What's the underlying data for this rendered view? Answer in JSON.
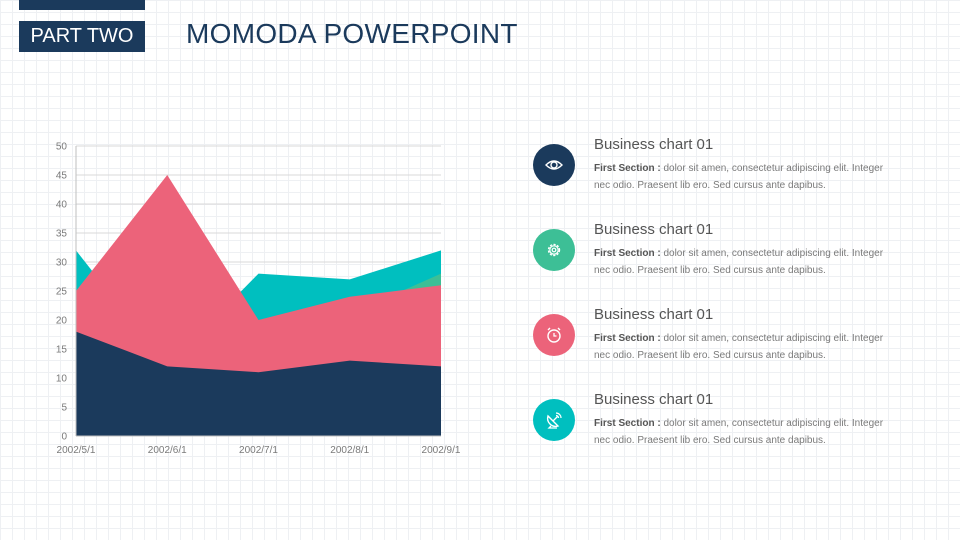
{
  "header": {
    "part_label": "PART TWO",
    "title": "MOMODA POWERPOINT"
  },
  "chart_data": {
    "type": "area",
    "categories": [
      "2002/5/1",
      "2002/6/1",
      "2002/7/1",
      "2002/8/1",
      "2002/9/1"
    ],
    "ylim": [
      0,
      50
    ],
    "yticks": [
      0,
      5,
      10,
      15,
      20,
      25,
      30,
      35,
      40,
      45,
      50
    ],
    "grid": true,
    "legend": "none",
    "series": [
      {
        "values": [
          32,
          12,
          28,
          27,
          32
        ],
        "color": "#00bfbf"
      },
      {
        "values": [
          22,
          12,
          12,
          21,
          28
        ],
        "color": "#3dbf96"
      },
      {
        "values": [
          25,
          45,
          20,
          24,
          26
        ],
        "color": "#ec637a"
      },
      {
        "values": [
          18,
          12,
          11,
          13,
          12
        ],
        "color": "#1b3a5c"
      }
    ]
  },
  "items": [
    {
      "icon": "eye-icon",
      "color": "#1b3a5c",
      "title": "Business chart 01",
      "bold": "First Section :",
      "text": " dolor sit amen, consectetur adipiscing elit. Integer nec odio. Praesent lib ero. Sed cursus ante dapibus."
    },
    {
      "icon": "gear-icon",
      "color": "#3dbf96",
      "title": "Business chart 01",
      "bold": "First Section :",
      "text": " dolor sit amen, consectetur adipiscing elit. Integer nec odio. Praesent lib ero. Sed cursus ante dapibus."
    },
    {
      "icon": "alarm-clock-icon",
      "color": "#ec637a",
      "title": "Business chart 01",
      "bold": "First Section :",
      "text": " dolor sit amen, consectetur adipiscing elit. Integer nec odio. Praesent lib ero. Sed cursus ante dapibus."
    },
    {
      "icon": "satellite-dish-icon",
      "color": "#00bfbf",
      "title": "Business chart 01",
      "bold": "First Section :",
      "text": " dolor sit amen, consectetur adipiscing elit. Integer nec odio. Praesent lib ero. Sed cursus ante dapibus."
    }
  ]
}
